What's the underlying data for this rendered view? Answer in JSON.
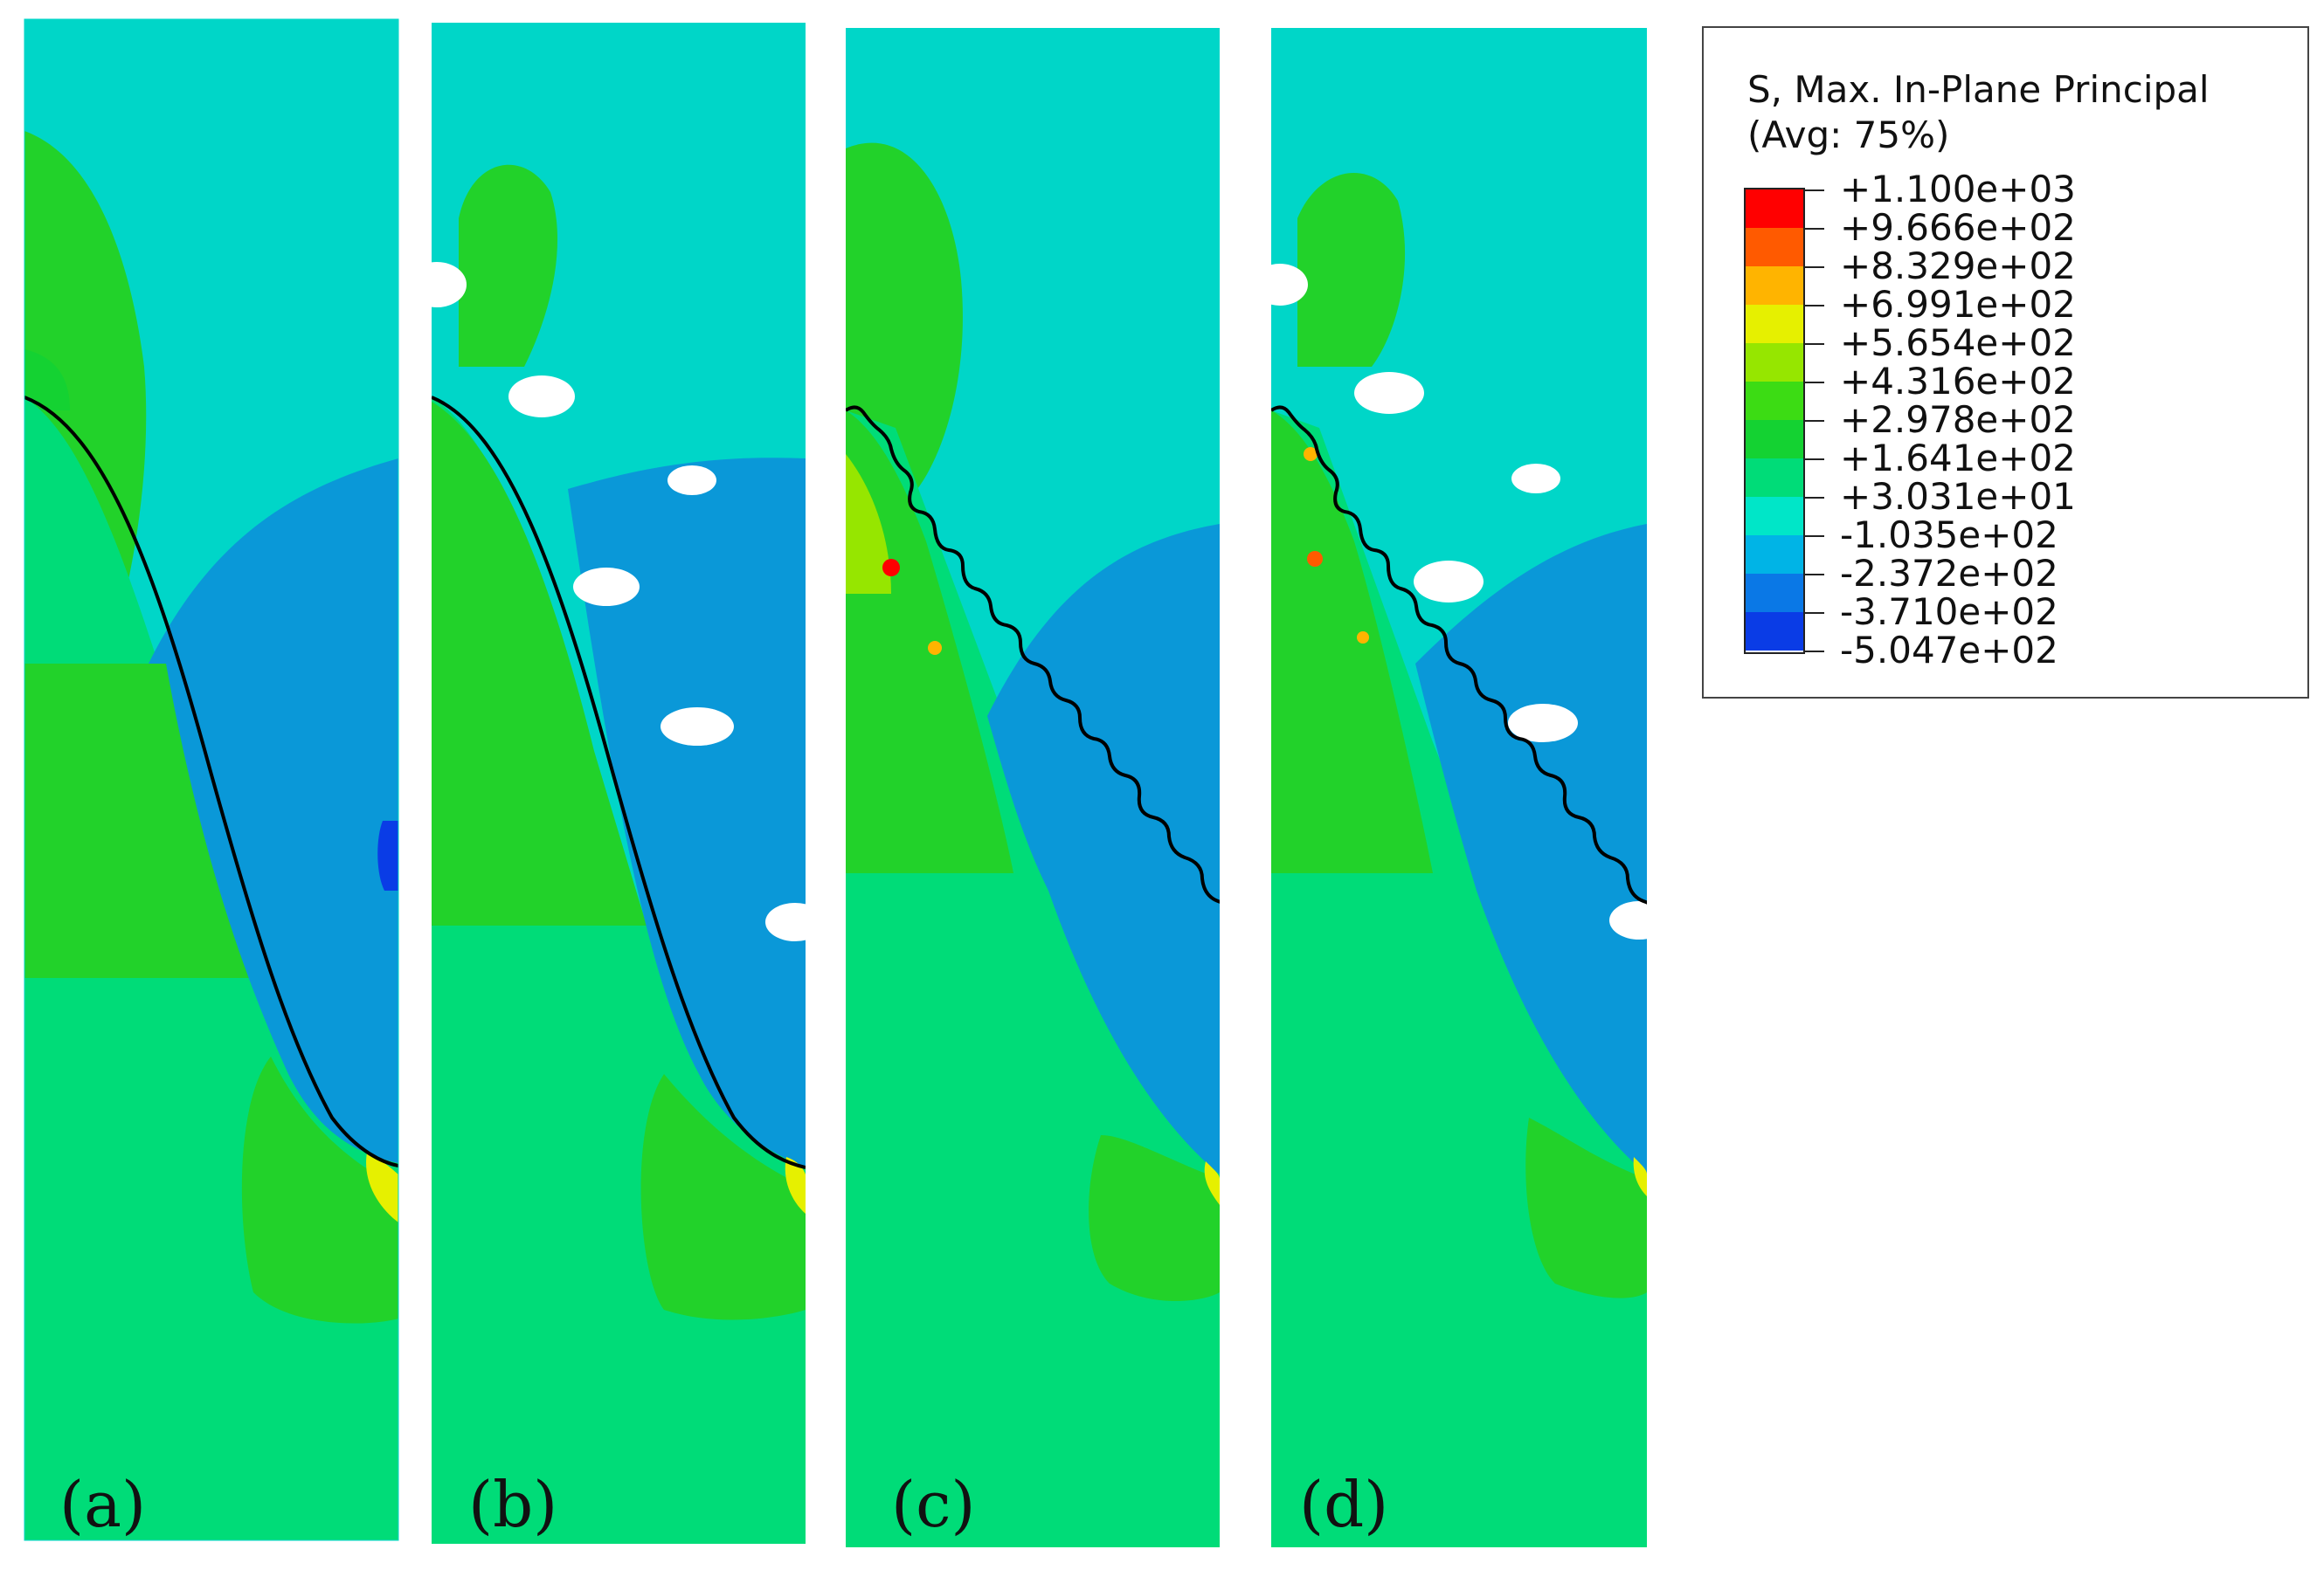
{
  "panels": [
    {
      "label": "(a)"
    },
    {
      "label": "(b)"
    },
    {
      "label": "(c)"
    },
    {
      "label": "(d)"
    }
  ],
  "legend": {
    "title_line1": "S, Max. In-Plane Principal",
    "title_line2": "(Avg: 75%)",
    "levels": [
      "+1.100e+03",
      "+9.666e+02",
      "+8.329e+02",
      "+6.991e+02",
      "+5.654e+02",
      "+4.316e+02",
      "+2.978e+02",
      "+1.641e+02",
      "+3.031e+01",
      "-1.035e+02",
      "-2.372e+02",
      "-3.710e+02",
      "-5.047e+02"
    ],
    "colors": [
      "#ff0000",
      "#ff5a00",
      "#ffb400",
      "#e6f000",
      "#96e600",
      "#3cdc14",
      "#14d232",
      "#00dc78",
      "#00e6c8",
      "#00b4e6",
      "#0a78e6",
      "#0a3ce6"
    ]
  },
  "colors": {
    "background_field": "#00d6c8",
    "compression_field": "#0a98d8",
    "tension_field_high": "#22d22a",
    "tension_field_low": "#00dc78",
    "interface_line": "#000000"
  }
}
